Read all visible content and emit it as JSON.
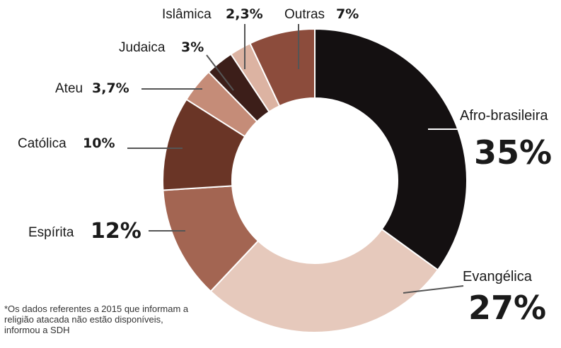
{
  "chart_data": {
    "type": "donut",
    "unit": "%",
    "slices": [
      {
        "label": "Afro-brasileira",
        "value": 35,
        "value_text": "35%",
        "color": "#141011"
      },
      {
        "label": "Evangélica",
        "value": 27,
        "value_text": "27%",
        "color": "#e6c9bc"
      },
      {
        "label": "Espírita",
        "value": 12,
        "value_text": "12%",
        "color": "#a36552"
      },
      {
        "label": "Católica",
        "value": 10,
        "value_text": "10%",
        "color": "#6a3526"
      },
      {
        "label": "Ateu",
        "value": 3.7,
        "value_text": "3,7%",
        "color": "#c58c78"
      },
      {
        "label": "Judaica",
        "value": 3,
        "value_text": "3%",
        "color": "#3c1e19"
      },
      {
        "label": "Islâmica",
        "value": 2.3,
        "value_text": "2,3%",
        "color": "#dcb3a2"
      },
      {
        "label": "Outras",
        "value": 7,
        "value_text": "7%",
        "color": "#8c4c3c"
      }
    ]
  },
  "footnote": "*Os dados referentes a 2015 que informam a religião atacada não estão disponíveis, informou a SDH"
}
